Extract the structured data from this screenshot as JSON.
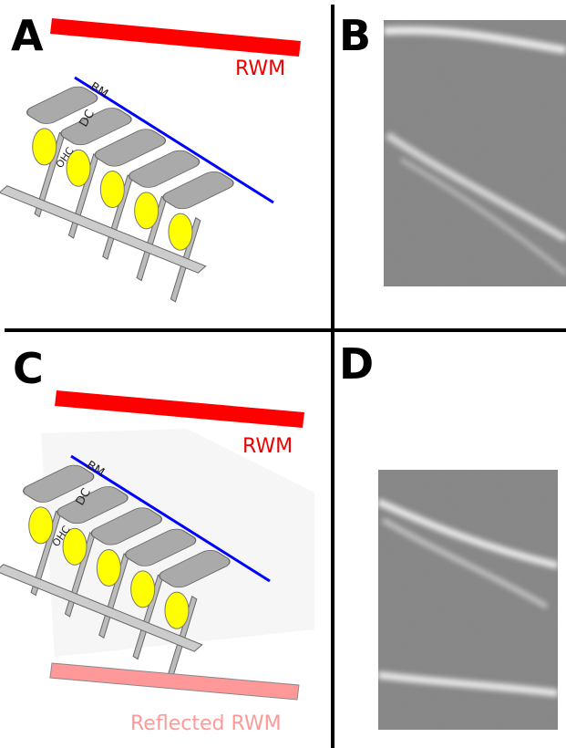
{
  "panels": [
    {
      "label": "A",
      "rwm": "RWM",
      "bm": "BM",
      "dc": "DC",
      "ohc": "OHC"
    },
    {
      "label": "B"
    },
    {
      "label": "C",
      "rwm": "RWM",
      "bm": "BM",
      "dc": "DC",
      "ohc": "OHC",
      "reflected": "Reflected RWM"
    },
    {
      "label": "D"
    }
  ]
}
